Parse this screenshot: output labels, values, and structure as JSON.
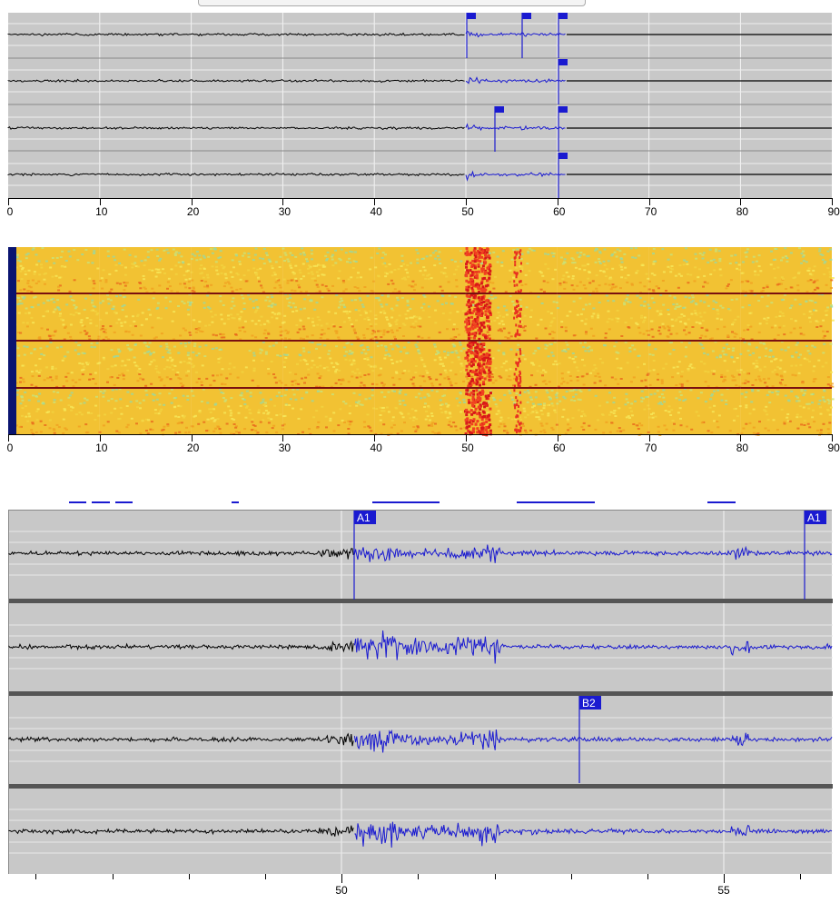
{
  "overview_axis": {
    "labels": [
      "0",
      "10",
      "20",
      "30",
      "40",
      "50",
      "60",
      "70",
      "80",
      "90"
    ]
  },
  "spectrogram_axis": {
    "labels": [
      "0",
      "10",
      "20",
      "30",
      "40",
      "50",
      "60",
      "70",
      "80",
      "90"
    ]
  },
  "zoom_axis": {
    "labels": [
      "50",
      "55"
    ]
  },
  "zoom_markers": [
    {
      "label": "A1",
      "channel": 1
    },
    {
      "label": "A1",
      "channel": 1
    },
    {
      "label": "B2",
      "channel": 3
    }
  ],
  "colors": {
    "waveform": "#000000",
    "pick": "#1a1ad0",
    "panel_bg": "#c8c8c8",
    "separator": "#555555"
  }
}
